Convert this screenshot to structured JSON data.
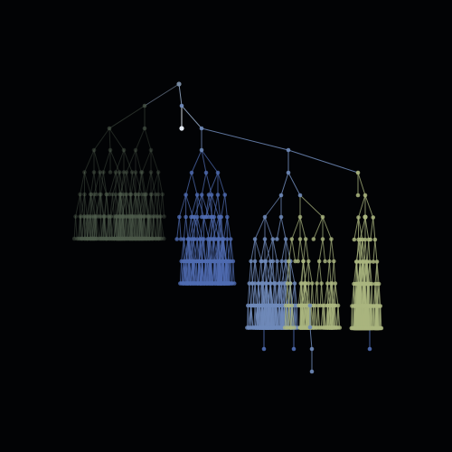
{
  "diagram": {
    "type": "tree",
    "background": "#020305",
    "palette": {
      "root": "#7b8ea6",
      "trunk": "#8ea2bd",
      "dim_green": "#4d5a4b",
      "dim_blue": "#2f3f6e",
      "blue": "#4f6bb0",
      "steel": "#6f89b8",
      "khaki": "#aab57f",
      "highlight": "#e6ecf5"
    },
    "branches": [
      {
        "name": "branch-left-dim",
        "tone": "dim"
      },
      {
        "name": "branch-center-blue",
        "tone": "blue"
      },
      {
        "name": "branch-right-steel",
        "tone": "steel"
      },
      {
        "name": "branch-far-right-khaki",
        "tone": "khaki"
      }
    ]
  }
}
